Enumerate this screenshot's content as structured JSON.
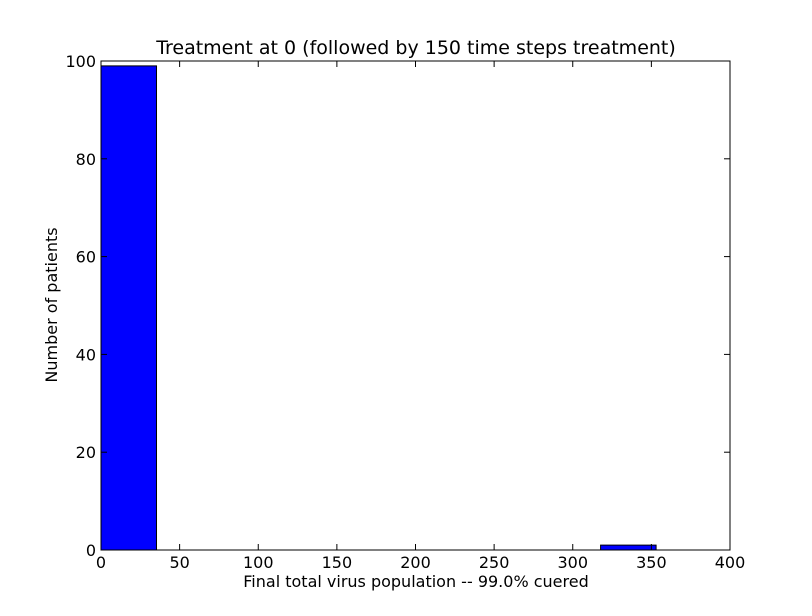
{
  "chart_data": {
    "type": "bar",
    "subtype": "histogram",
    "title": "Treatment at 0 (followed by 150 time steps treatment)",
    "xlabel": "Final total virus population -- 99.0% cuered",
    "ylabel": "Number of patients",
    "xlim": [
      0,
      400
    ],
    "ylim": [
      0,
      100
    ],
    "xticks": [
      0,
      50,
      100,
      150,
      200,
      250,
      300,
      350,
      400
    ],
    "yticks": [
      0,
      20,
      40,
      60,
      80,
      100
    ],
    "grid": false,
    "legend": "none",
    "bar_color": "#0000ff",
    "edge_color": "#000000",
    "bins": [
      {
        "x0": 0.0,
        "x1": 35.3,
        "count": 99
      },
      {
        "x0": 35.3,
        "x1": 70.6,
        "count": 0
      },
      {
        "x0": 70.6,
        "x1": 105.9,
        "count": 0
      },
      {
        "x0": 105.9,
        "x1": 141.2,
        "count": 0
      },
      {
        "x0": 141.2,
        "x1": 176.5,
        "count": 0
      },
      {
        "x0": 176.5,
        "x1": 211.8,
        "count": 0
      },
      {
        "x0": 211.8,
        "x1": 247.1,
        "count": 0
      },
      {
        "x0": 247.1,
        "x1": 282.4,
        "count": 0
      },
      {
        "x0": 282.4,
        "x1": 317.7,
        "count": 0
      },
      {
        "x0": 317.7,
        "x1": 353.0,
        "count": 1
      }
    ]
  }
}
